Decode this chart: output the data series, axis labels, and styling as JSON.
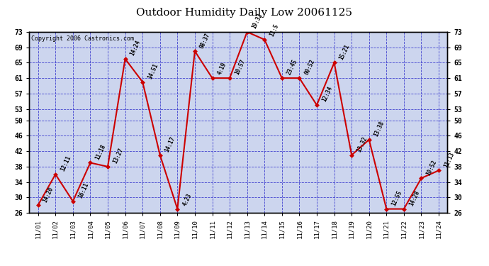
{
  "title": "Outdoor Humidity Daily Low 20061125",
  "copyright": "Copyright 2006 Castronics.com",
  "x_labels": [
    "11/01",
    "11/02",
    "11/03",
    "11/04",
    "11/05",
    "11/06",
    "11/07",
    "11/08",
    "11/09",
    "11/10",
    "11/11",
    "11/12",
    "11/13",
    "11/14",
    "11/15",
    "11/16",
    "11/17",
    "11/18",
    "11/19",
    "11/20",
    "11/21",
    "11/22",
    "11/23",
    "11/24"
  ],
  "y_values": [
    28,
    36,
    29,
    39,
    38,
    66,
    60,
    41,
    27,
    68,
    61,
    61,
    73,
    71,
    61,
    61,
    54,
    65,
    41,
    45,
    27,
    27,
    35,
    37
  ],
  "annotations": [
    "14:20",
    "12:11",
    "16:11",
    "11:18",
    "13:27",
    "14:24",
    "14:51",
    "14:17",
    "4:23",
    "08:37",
    "4:19",
    "10:57",
    "19:32",
    "11:5",
    "23:45",
    "00:52",
    "12:34",
    "15:21",
    "13:32",
    "13:38",
    "12:55",
    "14:28",
    "10:52",
    "11:13"
  ],
  "ylim_min": 26,
  "ylim_max": 73,
  "yticks": [
    26,
    30,
    34,
    38,
    42,
    46,
    50,
    53,
    57,
    61,
    65,
    69,
    73
  ],
  "line_color": "#cc0000",
  "marker_color": "#cc0000",
  "bg_color": "#ccd5ee",
  "grid_color": "#3333cc",
  "title_fontsize": 11,
  "copyright_fontsize": 6,
  "ann_fontsize": 5.5,
  "ann_rotation": 65
}
